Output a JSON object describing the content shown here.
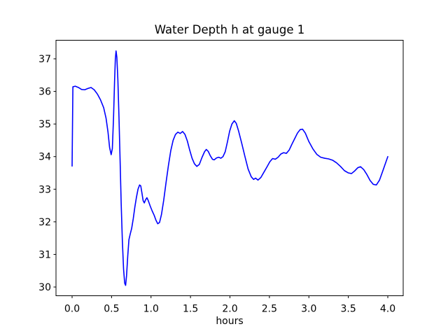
{
  "figure": {
    "title": "Water Depth h at gauge 1",
    "xlabel": "hours",
    "background_color": "#ffffff",
    "axes_color": "#000000",
    "line_color": "#0000ff"
  },
  "chart_data": {
    "type": "line",
    "title": "Water Depth h at gauge 1",
    "xlabel": "hours",
    "ylabel": "",
    "grid": false,
    "legend": null,
    "xlim": [
      -0.204,
      4.195
    ],
    "ylim": [
      29.732,
      37.569
    ],
    "xticks": [
      0.0,
      0.5,
      1.0,
      1.5,
      2.0,
      2.5,
      3.0,
      3.5,
      4.0
    ],
    "xtick_labels": [
      "0.0",
      "0.5",
      "1.0",
      "1.5",
      "2.0",
      "2.5",
      "3.0",
      "3.5",
      "4.0"
    ],
    "yticks": [
      30,
      31,
      32,
      33,
      34,
      35,
      36,
      37
    ],
    "ytick_labels": [
      "30",
      "31",
      "32",
      "33",
      "34",
      "35",
      "36",
      "37"
    ],
    "series": [
      {
        "name": "water-depth-h",
        "color": "#0000ff",
        "x": [
          0.0,
          0.01,
          0.04,
          0.08,
          0.12,
          0.16,
          0.2,
          0.24,
          0.28,
          0.32,
          0.36,
          0.4,
          0.43,
          0.455,
          0.475,
          0.495,
          0.51,
          0.525,
          0.538,
          0.548,
          0.557,
          0.567,
          0.58,
          0.594,
          0.608,
          0.622,
          0.637,
          0.652,
          0.666,
          0.678,
          0.69,
          0.705,
          0.72,
          0.737,
          0.755,
          0.775,
          0.795,
          0.815,
          0.835,
          0.855,
          0.87,
          0.885,
          0.9,
          0.915,
          0.932,
          0.948,
          0.965,
          0.99,
          1.015,
          1.04,
          1.062,
          1.085,
          1.108,
          1.132,
          1.16,
          1.19,
          1.22,
          1.25,
          1.28,
          1.31,
          1.34,
          1.37,
          1.4,
          1.43,
          1.46,
          1.49,
          1.52,
          1.55,
          1.58,
          1.612,
          1.645,
          1.678,
          1.7,
          1.725,
          1.75,
          1.778,
          1.8,
          1.83,
          1.858,
          1.885,
          1.912,
          1.94,
          1.968,
          1.996,
          2.025,
          2.055,
          2.08,
          2.11,
          2.15,
          2.19,
          2.23,
          2.27,
          2.3,
          2.325,
          2.355,
          2.392,
          2.43,
          2.468,
          2.505,
          2.54,
          2.575,
          2.61,
          2.645,
          2.68,
          2.715,
          2.75,
          2.785,
          2.82,
          2.855,
          2.89,
          2.92,
          2.955,
          3.0,
          3.05,
          3.1,
          3.15,
          3.2,
          3.25,
          3.3,
          3.35,
          3.4,
          3.45,
          3.5,
          3.54,
          3.58,
          3.62,
          3.655,
          3.695,
          3.735,
          3.775,
          3.815,
          3.855,
          3.895,
          3.935,
          3.968,
          4.0
        ],
        "y": [
          33.71,
          36.14,
          36.16,
          36.12,
          36.06,
          36.05,
          36.09,
          36.12,
          36.05,
          35.92,
          35.74,
          35.5,
          35.18,
          34.75,
          34.28,
          34.06,
          34.25,
          35.2,
          36.3,
          37.0,
          37.24,
          37.05,
          36.35,
          35.2,
          33.9,
          32.55,
          31.4,
          30.55,
          30.12,
          30.05,
          30.35,
          30.95,
          31.45,
          31.63,
          31.8,
          32.1,
          32.45,
          32.75,
          33.0,
          33.13,
          33.1,
          32.88,
          32.65,
          32.58,
          32.68,
          32.74,
          32.65,
          32.48,
          32.33,
          32.2,
          32.05,
          31.94,
          31.98,
          32.22,
          32.65,
          33.2,
          33.72,
          34.18,
          34.5,
          34.68,
          34.75,
          34.71,
          34.77,
          34.68,
          34.48,
          34.2,
          33.95,
          33.78,
          33.7,
          33.76,
          33.97,
          34.15,
          34.22,
          34.16,
          34.03,
          33.92,
          33.9,
          33.96,
          33.98,
          33.95,
          34.0,
          34.15,
          34.45,
          34.78,
          35.0,
          35.1,
          35.02,
          34.78,
          34.4,
          34.0,
          33.62,
          33.38,
          33.3,
          33.34,
          33.28,
          33.36,
          33.52,
          33.68,
          33.84,
          33.94,
          33.92,
          33.98,
          34.08,
          34.12,
          34.1,
          34.2,
          34.38,
          34.55,
          34.72,
          34.83,
          34.84,
          34.72,
          34.46,
          34.24,
          34.07,
          33.98,
          33.95,
          33.93,
          33.89,
          33.81,
          33.7,
          33.57,
          33.5,
          33.48,
          33.56,
          33.66,
          33.69,
          33.6,
          33.45,
          33.27,
          33.15,
          33.13,
          33.28,
          33.55,
          33.78,
          34.0
        ]
      }
    ]
  }
}
